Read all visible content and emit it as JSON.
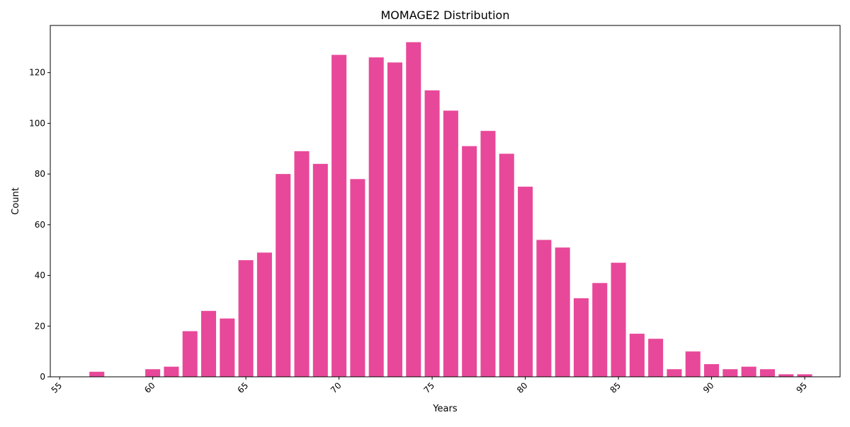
{
  "chart_data": {
    "type": "bar",
    "title": "MOMAGE2 Distribution",
    "xlabel": "Years",
    "ylabel": "Count",
    "xlim": [
      54.5,
      96.9
    ],
    "ylim": [
      0,
      138.6
    ],
    "x_ticks": [
      55,
      60,
      65,
      70,
      75,
      80,
      85,
      90,
      95
    ],
    "y_ticks": [
      0,
      20,
      40,
      60,
      80,
      100,
      120
    ],
    "bar_color": "#e8489a",
    "grid": false,
    "x": [
      57,
      60,
      61,
      62,
      63,
      64,
      65,
      66,
      67,
      68,
      69,
      70,
      71,
      72,
      73,
      74,
      75,
      76,
      77,
      78,
      79,
      80,
      81,
      82,
      83,
      84,
      85,
      86,
      87,
      88,
      89,
      90,
      91,
      92,
      93,
      94,
      95
    ],
    "values": [
      2,
      3,
      4,
      18,
      26,
      23,
      46,
      49,
      80,
      89,
      84,
      127,
      78,
      126,
      124,
      132,
      113,
      105,
      91,
      97,
      88,
      75,
      54,
      51,
      31,
      37,
      45,
      17,
      15,
      3,
      10,
      5,
      3,
      4,
      3,
      1,
      1
    ]
  }
}
